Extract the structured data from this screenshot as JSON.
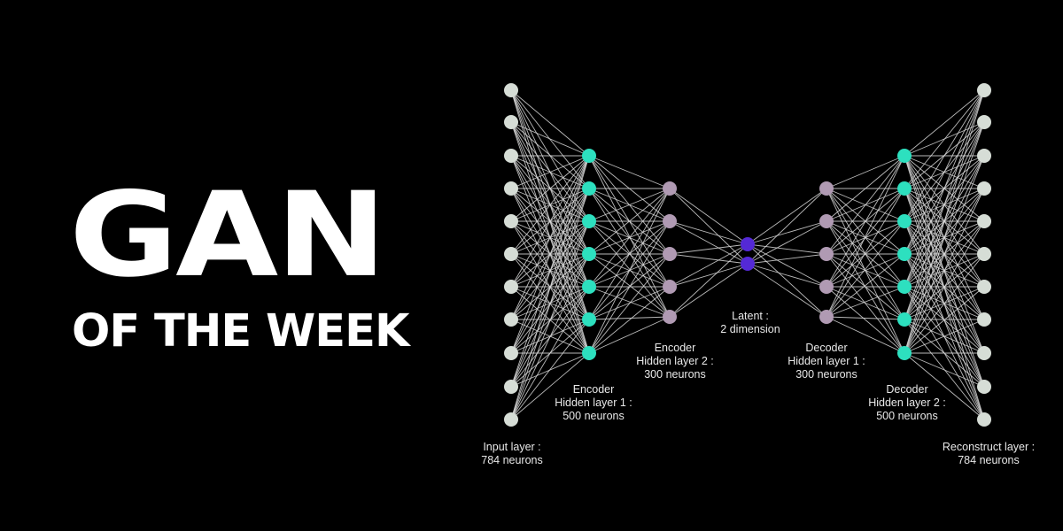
{
  "title": {
    "main": "GAN",
    "sub": "OF THE WEEK"
  },
  "colors": {
    "background": "#000000",
    "title": "#ffffff",
    "edge": "#d9d9d9",
    "io_node": "#d6ddd6",
    "hidden1_node": "#2de0bf",
    "hidden2_node": "#b09ab3",
    "latent_node": "#5429d6",
    "label": "#e8e8e8"
  },
  "network": {
    "layers": [
      {
        "id": "input",
        "nodes": 11,
        "color_key": "io_node",
        "label_lines": [
          "Input layer :",
          "784 neurons"
        ]
      },
      {
        "id": "enc1",
        "nodes": 7,
        "color_key": "hidden1_node",
        "label_lines": [
          "Encoder",
          "Hidden layer 1 :",
          "500 neurons"
        ]
      },
      {
        "id": "enc2",
        "nodes": 5,
        "color_key": "hidden2_node",
        "label_lines": [
          "Encoder",
          "Hidden layer 2 :",
          "300 neurons"
        ]
      },
      {
        "id": "latent",
        "nodes": 2,
        "color_key": "latent_node",
        "label_lines": [
          "Latent :",
          "2 dimension"
        ]
      },
      {
        "id": "dec1",
        "nodes": 5,
        "color_key": "hidden2_node",
        "label_lines": [
          "Decoder",
          "Hidden layer 1 :",
          "300 neurons"
        ]
      },
      {
        "id": "dec2",
        "nodes": 7,
        "color_key": "hidden1_node",
        "label_lines": [
          "Decoder",
          "Hidden layer 2 :",
          "500 neurons"
        ]
      },
      {
        "id": "output",
        "nodes": 11,
        "color_key": "io_node",
        "label_lines": [
          "Reconstruct layer :",
          "784 neurons"
        ]
      }
    ]
  }
}
